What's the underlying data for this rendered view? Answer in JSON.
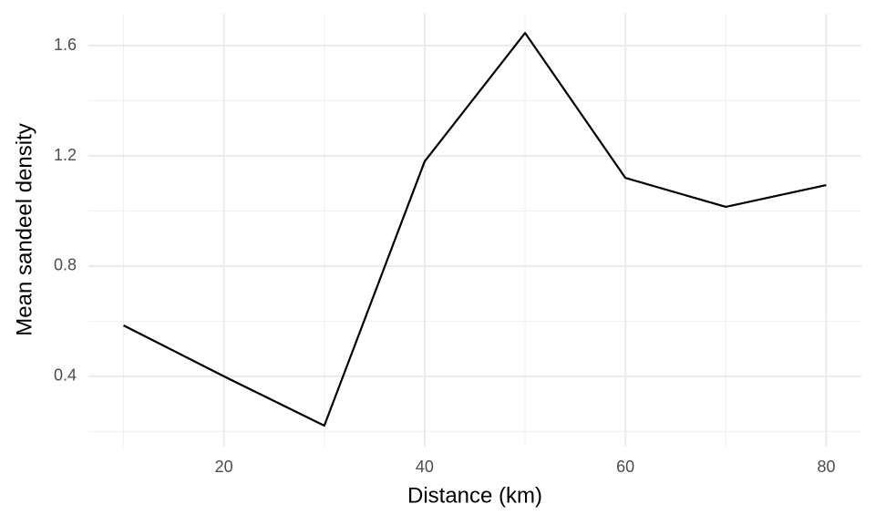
{
  "chart_data": {
    "type": "line",
    "x_label": "Distance (km)",
    "y_label": "Mean sandeel density",
    "x": [
      10,
      20,
      30,
      40,
      50,
      60,
      70,
      80
    ],
    "values": [
      0.585,
      0.4,
      0.221,
      1.18,
      1.646,
      1.12,
      1.015,
      1.094
    ],
    "color": "#000000",
    "xlim": [
      6.5,
      83.5
    ],
    "xticks": [
      20,
      40,
      60,
      80
    ],
    "x_minor_ticks": [
      10,
      30,
      50,
      70
    ],
    "ylim": [
      0.145,
      1.716
    ],
    "yticks": [
      0.4,
      0.8,
      1.2,
      1.6
    ],
    "y_minor_ticks": [
      0.2,
      0.6,
      1.0,
      1.4
    ],
    "grid": true
  }
}
